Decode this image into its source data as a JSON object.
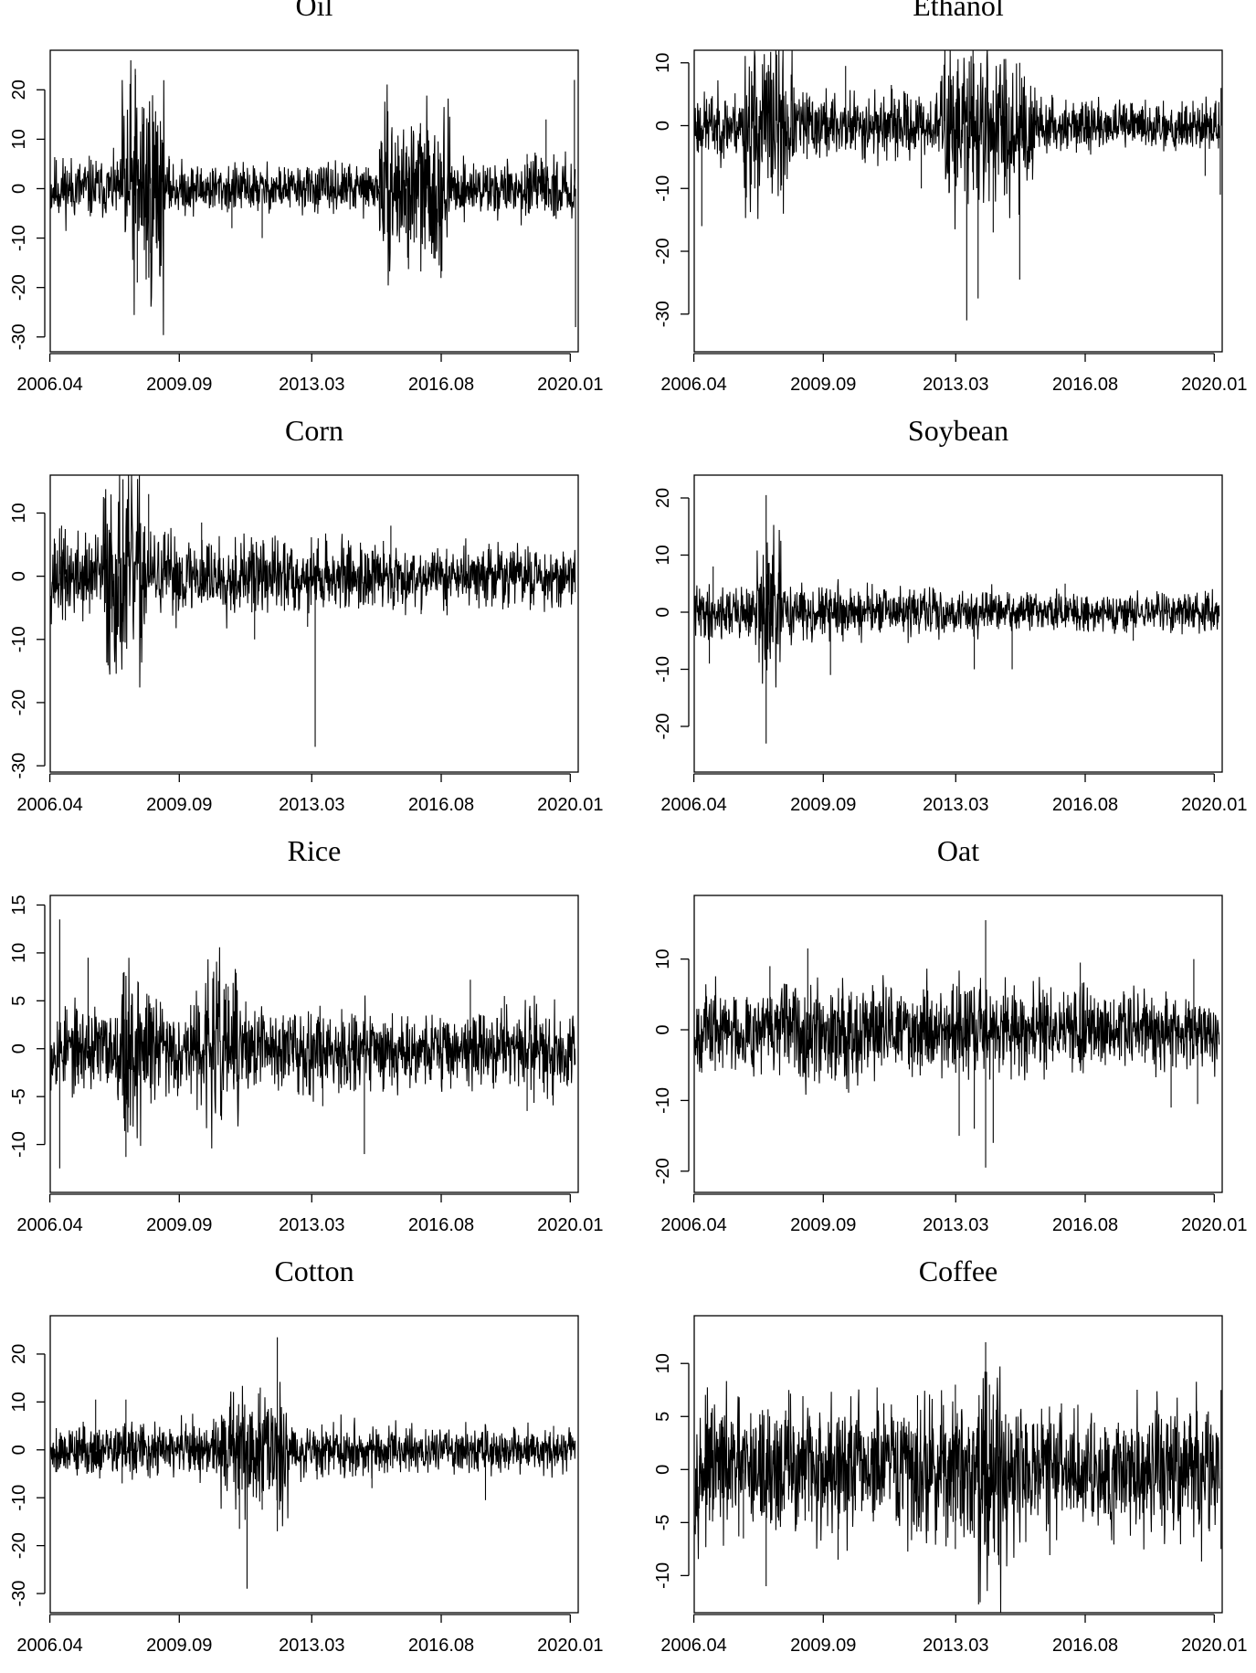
{
  "chart_data": [
    {
      "type": "line",
      "title": "Oil",
      "xlabel": "",
      "ylabel": "",
      "x_ticks": [
        "2006.04",
        "2009.09",
        "2013.03",
        "2016.08",
        "2020.01"
      ],
      "xlim": [
        2006.3,
        2020.25
      ],
      "ylim": [
        -33,
        28
      ],
      "y_ticks": [
        20,
        10,
        0,
        -10,
        -20,
        -30
      ],
      "noise": [
        4.0,
        3.2,
        2.8,
        3.2,
        3.6
      ],
      "seed": 11,
      "spikes": [
        {
          "x": 2008.55,
          "y": 23
        },
        {
          "x": 2008.75,
          "y": 13
        },
        {
          "x": 2008.6,
          "y": -19
        },
        {
          "x": 2008.95,
          "y": -13
        },
        {
          "x": 2009.45,
          "y": 6
        },
        {
          "x": 2011.1,
          "y": -8
        },
        {
          "x": 2011.9,
          "y": -10
        },
        {
          "x": 2015.0,
          "y": 8
        },
        {
          "x": 2015.7,
          "y": -9
        },
        {
          "x": 2016.25,
          "y": 12
        },
        {
          "x": 2016.1,
          "y": -10
        },
        {
          "x": 2018.9,
          "y": 7
        },
        {
          "x": 2019.4,
          "y": 14
        },
        {
          "x": 2020.15,
          "y": 22
        },
        {
          "x": 2020.18,
          "y": -28
        }
      ],
      "bursts": [
        {
          "x0": 2008.2,
          "x1": 2009.3,
          "amp": 11
        },
        {
          "x0": 2015.0,
          "x1": 2016.9,
          "amp": 6
        }
      ]
    },
    {
      "type": "line",
      "title": "Ethanol",
      "xlabel": "",
      "ylabel": "",
      "x_ticks": [
        "2006.04",
        "2009.09",
        "2013.03",
        "2016.08",
        "2020.01"
      ],
      "xlim": [
        2006.3,
        2020.25
      ],
      "ylim": [
        -36,
        12
      ],
      "y_ticks": [
        10,
        0,
        -10,
        -20,
        -30
      ],
      "noise": [
        3.2,
        3.4,
        2.8,
        2.2,
        2.6
      ],
      "seed": 23,
      "spikes": [
        {
          "x": 2006.5,
          "y": -16
        },
        {
          "x": 2007.9,
          "y": -10
        },
        {
          "x": 2010.3,
          "y": 9.5
        },
        {
          "x": 2012.3,
          "y": -10
        },
        {
          "x": 2013.5,
          "y": -31
        },
        {
          "x": 2013.8,
          "y": -27.5
        },
        {
          "x": 2014.2,
          "y": -17
        },
        {
          "x": 2014.9,
          "y": 10
        },
        {
          "x": 2014.9,
          "y": -24.5
        },
        {
          "x": 2019.8,
          "y": -8
        },
        {
          "x": 2020.2,
          "y": -11
        },
        {
          "x": 2020.22,
          "y": 6
        }
      ],
      "bursts": [
        {
          "x0": 2007.6,
          "x1": 2008.9,
          "amp": 5
        },
        {
          "x0": 2012.8,
          "x1": 2015.3,
          "amp": 5
        }
      ]
    },
    {
      "type": "line",
      "title": "Corn",
      "xlabel": "",
      "ylabel": "",
      "x_ticks": [
        "2006.04",
        "2009.09",
        "2013.03",
        "2016.08",
        "2020.01"
      ],
      "xlim": [
        2006.3,
        2020.25
      ],
      "ylim": [
        -31,
        16
      ],
      "y_ticks": [
        10,
        0,
        -10,
        -20,
        -30
      ],
      "noise": [
        4.2,
        4.0,
        3.4,
        2.8,
        3.2
      ],
      "seed": 37,
      "spikes": [
        {
          "x": 2006.6,
          "y": 8
        },
        {
          "x": 2006.7,
          "y": -7
        },
        {
          "x": 2008.9,
          "y": 13
        },
        {
          "x": 2008.1,
          "y": -8
        },
        {
          "x": 2010.3,
          "y": 8.5
        },
        {
          "x": 2011.7,
          "y": -10
        },
        {
          "x": 2013.3,
          "y": -27
        },
        {
          "x": 2013.1,
          "y": -8
        },
        {
          "x": 2015.3,
          "y": 8
        },
        {
          "x": 2016.1,
          "y": -6
        }
      ],
      "bursts": [
        {
          "x0": 2007.7,
          "x1": 2008.8,
          "amp": 6
        }
      ]
    },
    {
      "type": "line",
      "title": "Soybean",
      "xlabel": "",
      "ylabel": "",
      "x_ticks": [
        "2006.04",
        "2009.09",
        "2013.03",
        "2016.08",
        "2020.01"
      ],
      "xlim": [
        2006.3,
        2020.25
      ],
      "ylim": [
        -28,
        24
      ],
      "y_ticks": [
        20,
        10,
        0,
        -10,
        -20
      ],
      "noise": [
        2.8,
        2.8,
        2.3,
        2.0,
        2.1
      ],
      "seed": 41,
      "spikes": [
        {
          "x": 2006.8,
          "y": 8
        },
        {
          "x": 2006.7,
          "y": -9
        },
        {
          "x": 2008.2,
          "y": 20.5
        },
        {
          "x": 2008.2,
          "y": -23
        },
        {
          "x": 2008.3,
          "y": -7
        },
        {
          "x": 2009.9,
          "y": -11
        },
        {
          "x": 2013.7,
          "y": -10
        },
        {
          "x": 2014.7,
          "y": -10
        },
        {
          "x": 2016.1,
          "y": 5
        },
        {
          "x": 2017.9,
          "y": -5
        }
      ],
      "bursts": [
        {
          "x0": 2007.9,
          "x1": 2008.6,
          "amp": 5
        }
      ]
    },
    {
      "type": "line",
      "title": "Rice",
      "xlabel": "",
      "ylabel": "",
      "x_ticks": [
        "2006.04",
        "2009.09",
        "2013.03",
        "2016.08",
        "2020.01"
      ],
      "xlim": [
        2006.3,
        2020.25
      ],
      "ylim": [
        -15,
        16
      ],
      "y_ticks": [
        15,
        10,
        5,
        0,
        -5,
        -10
      ],
      "noise": [
        2.6,
        3.0,
        2.6,
        2.3,
        2.8
      ],
      "seed": 53,
      "spikes": [
        {
          "x": 2006.55,
          "y": 13.5
        },
        {
          "x": 2006.55,
          "y": -12.5
        },
        {
          "x": 2007.3,
          "y": 9.5
        },
        {
          "x": 2008.25,
          "y": 8
        },
        {
          "x": 2008.3,
          "y": -11.3
        },
        {
          "x": 2011.0,
          "y": 6.5
        },
        {
          "x": 2013.5,
          "y": -6
        },
        {
          "x": 2014.6,
          "y": -11
        },
        {
          "x": 2017.4,
          "y": 7.2
        },
        {
          "x": 2018.9,
          "y": -6.5
        },
        {
          "x": 2018.3,
          "y": 5.5
        }
      ],
      "bursts": [
        {
          "x0": 2008.2,
          "x1": 2009.0,
          "amp": 3
        },
        {
          "x0": 2010.4,
          "x1": 2011.3,
          "amp": 2.5
        }
      ]
    },
    {
      "type": "line",
      "title": "Oat",
      "xlabel": "",
      "ylabel": "",
      "x_ticks": [
        "2006.04",
        "2009.09",
        "2013.03",
        "2016.08",
        "2020.01"
      ],
      "xlim": [
        2006.3,
        2020.25
      ],
      "ylim": [
        -23,
        19
      ],
      "y_ticks": [
        10,
        0,
        -10,
        -20
      ],
      "noise": [
        3.4,
        4.2,
        4.0,
        3.6,
        3.4
      ],
      "seed": 67,
      "spikes": [
        {
          "x": 2009.3,
          "y": 11.5
        },
        {
          "x": 2008.3,
          "y": 9
        },
        {
          "x": 2013.3,
          "y": -15
        },
        {
          "x": 2013.7,
          "y": -14
        },
        {
          "x": 2014.0,
          "y": 15.5
        },
        {
          "x": 2014.0,
          "y": -19.5
        },
        {
          "x": 2014.2,
          "y": -16
        },
        {
          "x": 2016.5,
          "y": 9.5
        },
        {
          "x": 2018.9,
          "y": -11
        },
        {
          "x": 2019.5,
          "y": 10
        },
        {
          "x": 2019.6,
          "y": -10.5
        }
      ],
      "bursts": []
    },
    {
      "type": "line",
      "title": "Cotton",
      "xlabel": "",
      "ylabel": "",
      "x_ticks": [
        "2006.04",
        "2009.09",
        "2013.03",
        "2016.08",
        "2020.01"
      ],
      "xlim": [
        2006.3,
        2020.25
      ],
      "ylim": [
        -34,
        28
      ],
      "y_ticks": [
        20,
        10,
        0,
        -10,
        -20,
        -30
      ],
      "noise": [
        3.2,
        3.6,
        3.4,
        2.8,
        2.6
      ],
      "seed": 79,
      "spikes": [
        {
          "x": 2007.5,
          "y": 10.5
        },
        {
          "x": 2008.3,
          "y": 10.5
        },
        {
          "x": 2008.2,
          "y": -7
        },
        {
          "x": 2011.3,
          "y": -16.5
        },
        {
          "x": 2011.5,
          "y": -29
        },
        {
          "x": 2011.85,
          "y": 13
        },
        {
          "x": 2011.9,
          "y": -12.5
        },
        {
          "x": 2012.3,
          "y": 23.5
        },
        {
          "x": 2012.3,
          "y": -17
        },
        {
          "x": 2014.8,
          "y": -8
        },
        {
          "x": 2017.8,
          "y": -10.5
        },
        {
          "x": 2019.6,
          "y": 5
        }
      ],
      "bursts": [
        {
          "x0": 2010.8,
          "x1": 2012.6,
          "amp": 4
        }
      ]
    },
    {
      "type": "line",
      "title": "Coffee",
      "xlabel": "",
      "ylabel": "",
      "x_ticks": [
        "2006.04",
        "2009.09",
        "2013.03",
        "2016.08",
        "2020.01"
      ],
      "xlim": [
        2006.3,
        2020.25
      ],
      "ylim": [
        -13.5,
        14.5
      ],
      "y_ticks": [
        10,
        5,
        0,
        -5,
        -10
      ],
      "noise": [
        3.6,
        4.0,
        4.0,
        3.6,
        4.0
      ],
      "seed": 97,
      "spikes": [
        {
          "x": 2007.6,
          "y": -6.5
        },
        {
          "x": 2008.2,
          "y": -11
        },
        {
          "x": 2008.8,
          "y": 7.5
        },
        {
          "x": 2010.1,
          "y": -8.5
        },
        {
          "x": 2012.2,
          "y": 7
        },
        {
          "x": 2013.2,
          "y": 8
        },
        {
          "x": 2013.2,
          "y": -7.5
        },
        {
          "x": 2014.0,
          "y": 12
        },
        {
          "x": 2014.1,
          "y": 8
        },
        {
          "x": 2014.2,
          "y": -6.5
        },
        {
          "x": 2020.22,
          "y": 7.5
        },
        {
          "x": 2020.22,
          "y": -7.5
        }
      ],
      "bursts": [
        {
          "x0": 2013.8,
          "x1": 2014.6,
          "amp": 3
        }
      ]
    }
  ]
}
